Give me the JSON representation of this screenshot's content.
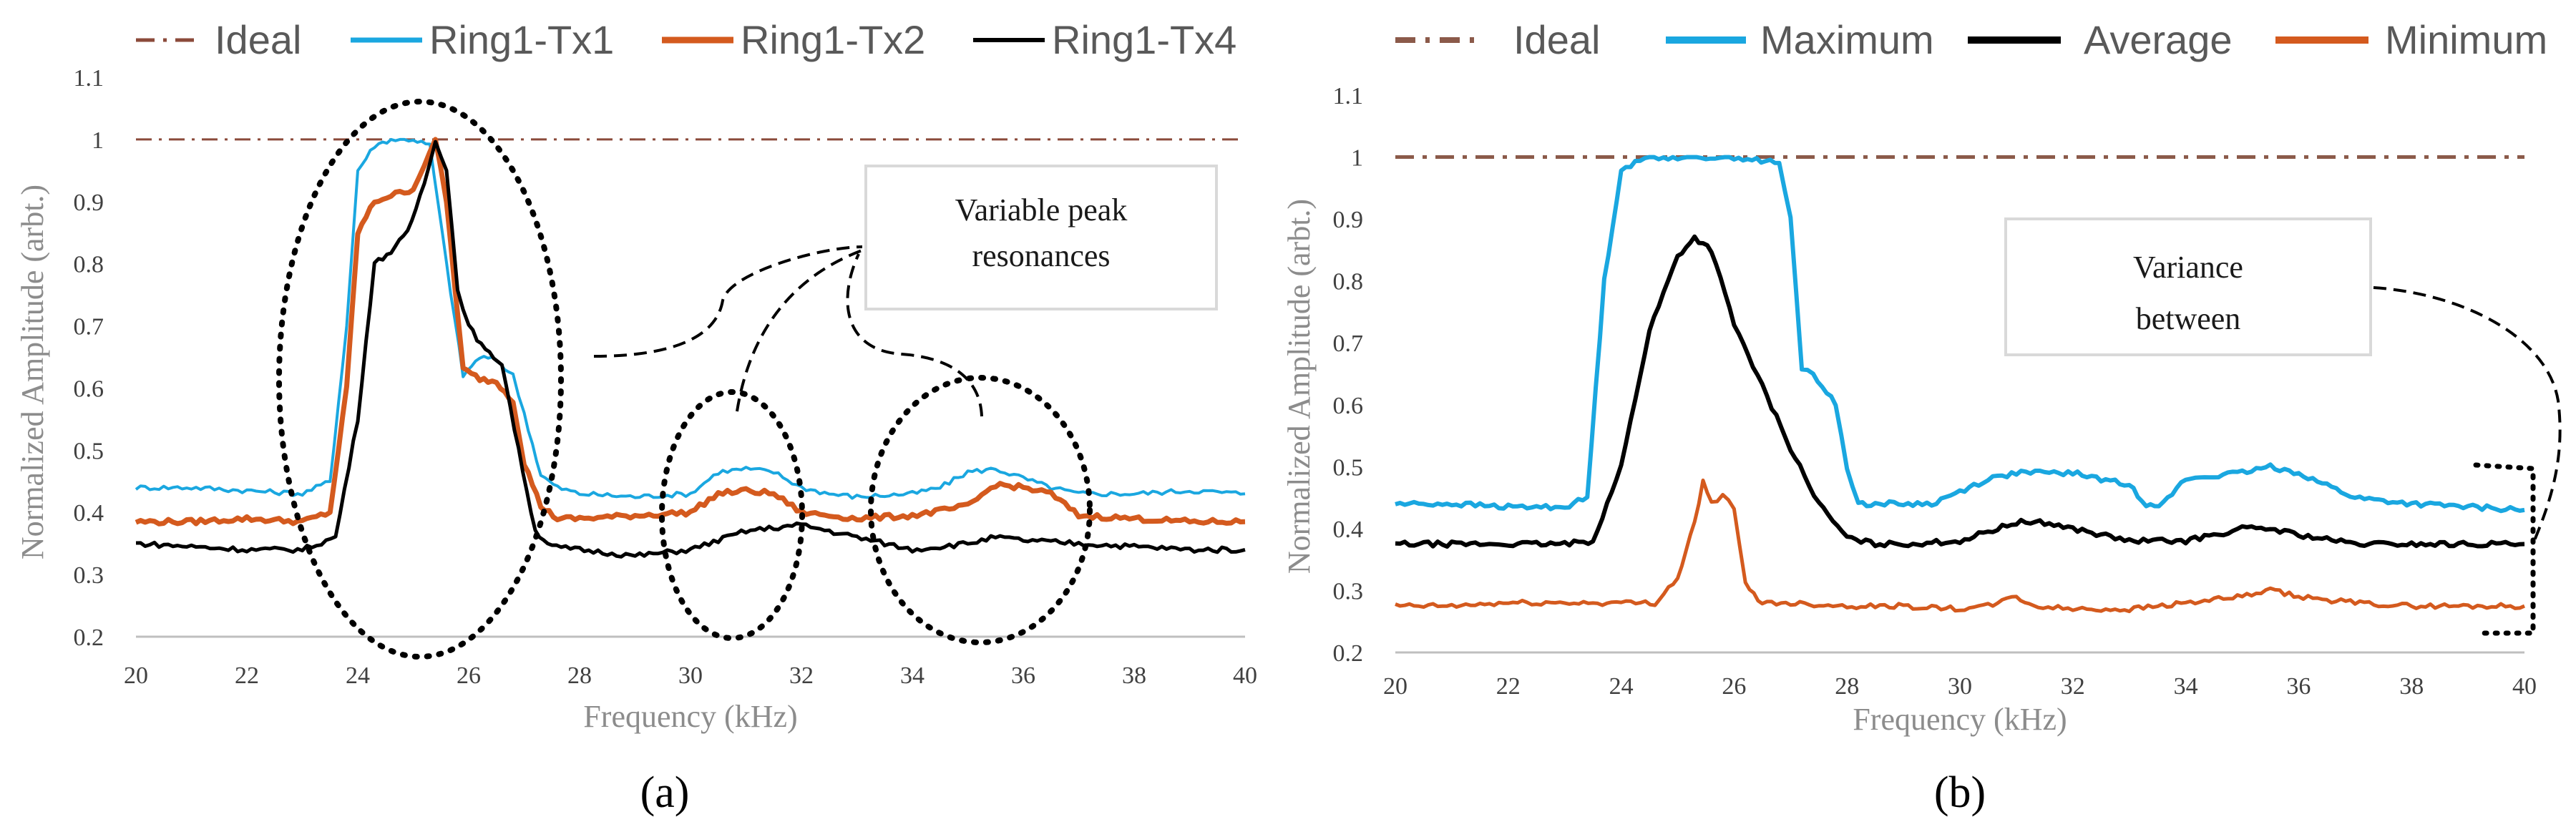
{
  "chart_data": [
    {
      "type": "line",
      "panel_label": "(a)",
      "xlabel": "Frequency (kHz)",
      "ylabel": "Normalized Amplitude (arbt.)",
      "xlim": [
        20,
        40
      ],
      "ylim": [
        0.2,
        1.1
      ],
      "xticks": [
        20,
        22,
        24,
        26,
        28,
        30,
        32,
        34,
        36,
        38,
        40
      ],
      "yticks": [
        0.2,
        0.3,
        0.4,
        0.5,
        0.6,
        0.7,
        0.8,
        0.9,
        1,
        1.1
      ],
      "ytick_labels": [
        "0.2",
        "0.3",
        "0.4",
        "0.5",
        "0.6",
        "0.7",
        "0.8",
        "0.9",
        "1",
        "1.1"
      ],
      "legend_position": "top",
      "series": [
        {
          "name": "Ideal",
          "color": "#8B4A3A",
          "style": "dashdot",
          "x": [
            20,
            40
          ],
          "y": [
            1,
            1
          ]
        },
        {
          "name": "Ring1-Tx1",
          "color": "#1AA7E0",
          "style": "solid",
          "x": [
            20,
            21,
            22,
            23,
            23.5,
            23.8,
            24,
            24.3,
            24.6,
            25.0,
            25.3,
            25.6,
            25.9,
            26.2,
            26.5,
            26.8,
            27.0,
            27.3,
            27.6,
            28,
            29,
            30,
            30.5,
            31,
            31.5,
            32,
            32.5,
            33,
            34,
            34.5,
            35,
            35.5,
            36,
            36.5,
            37,
            38,
            39,
            40
          ],
          "y": [
            0.44,
            0.44,
            0.435,
            0.43,
            0.45,
            0.7,
            0.95,
            0.99,
            1.0,
            1.0,
            0.99,
            0.8,
            0.62,
            0.65,
            0.645,
            0.62,
            0.56,
            0.46,
            0.44,
            0.43,
            0.425,
            0.43,
            0.465,
            0.47,
            0.465,
            0.44,
            0.43,
            0.425,
            0.43,
            0.44,
            0.465,
            0.47,
            0.455,
            0.44,
            0.43,
            0.43,
            0.435,
            0.43
          ]
        },
        {
          "name": "Ring1-Tx2",
          "color": "#D45A1E",
          "style": "solid",
          "x": [
            20,
            21,
            22,
            23,
            23.5,
            23.8,
            24.0,
            24.3,
            24.6,
            25.0,
            25.2,
            25.4,
            25.6,
            25.9,
            26.2,
            26.5,
            26.8,
            27.0,
            27.3,
            27.6,
            28,
            29,
            30,
            30.5,
            31,
            31.5,
            32,
            32.5,
            33,
            34,
            35,
            35.5,
            36,
            36.5,
            37,
            38,
            39,
            40
          ],
          "y": [
            0.385,
            0.385,
            0.39,
            0.385,
            0.4,
            0.6,
            0.85,
            0.9,
            0.91,
            0.92,
            0.96,
            1.0,
            0.9,
            0.63,
            0.615,
            0.61,
            0.58,
            0.48,
            0.41,
            0.39,
            0.39,
            0.395,
            0.4,
            0.43,
            0.435,
            0.43,
            0.4,
            0.395,
            0.39,
            0.395,
            0.41,
            0.445,
            0.44,
            0.43,
            0.395,
            0.39,
            0.385,
            0.385
          ]
        },
        {
          "name": "Ring1-Tx4",
          "color": "#000000",
          "style": "solid",
          "x": [
            20,
            21,
            22,
            23,
            23.6,
            24.0,
            24.3,
            24.6,
            24.9,
            25.2,
            25.4,
            25.6,
            25.8,
            26.0,
            26.3,
            26.6,
            26.9,
            27.2,
            27.5,
            28,
            29,
            30,
            30.5,
            31,
            31.5,
            32,
            33,
            34,
            35,
            35.5,
            36,
            37,
            38,
            39,
            40
          ],
          "y": [
            0.35,
            0.345,
            0.34,
            0.34,
            0.36,
            0.55,
            0.8,
            0.82,
            0.85,
            0.93,
            1.0,
            0.95,
            0.76,
            0.7,
            0.66,
            0.64,
            0.5,
            0.37,
            0.345,
            0.34,
            0.33,
            0.34,
            0.355,
            0.37,
            0.375,
            0.38,
            0.36,
            0.34,
            0.35,
            0.36,
            0.355,
            0.35,
            0.345,
            0.34,
            0.34
          ]
        }
      ],
      "annotations": [
        {
          "text_lines": [
            "Variable peak",
            "resonances"
          ]
        }
      ]
    },
    {
      "type": "line",
      "panel_label": "(b)",
      "xlabel": "Frequency (kHz)",
      "ylabel": "Normalized Amplitude (arbt.)",
      "xlim": [
        20,
        40
      ],
      "ylim": [
        0.2,
        1.1
      ],
      "xticks": [
        20,
        22,
        24,
        26,
        28,
        30,
        32,
        34,
        36,
        38,
        40
      ],
      "yticks": [
        0.2,
        0.3,
        0.4,
        0.5,
        0.6,
        0.7,
        0.8,
        0.9,
        1,
        1.1
      ],
      "ytick_labels": [
        "0.2",
        "0.3",
        "0.4",
        "0.5",
        "0.6",
        "0.7",
        "0.8",
        "0.9",
        "1",
        "1.1"
      ],
      "legend_position": "top",
      "series": [
        {
          "name": "Ideal",
          "color": "#8B5A4A",
          "style": "dashdot",
          "x": [
            20,
            40
          ],
          "y": [
            1,
            1
          ]
        },
        {
          "name": "Maximum",
          "color": "#1AA7E0",
          "style": "solid",
          "x": [
            20,
            21,
            22,
            23,
            23.4,
            23.7,
            24.0,
            24.5,
            25,
            26,
            26.8,
            27.0,
            27.2,
            27.4,
            27.8,
            28.0,
            28.2,
            28.5,
            29,
            29.5,
            30,
            30.5,
            31,
            32,
            33,
            33.3,
            33.6,
            34,
            35,
            35.5,
            36,
            37,
            38,
            39,
            40
          ],
          "y": [
            0.44,
            0.44,
            0.435,
            0.435,
            0.45,
            0.8,
            0.98,
            1.0,
            1.0,
            1.0,
            0.99,
            0.9,
            0.66,
            0.65,
            0.6,
            0.5,
            0.44,
            0.44,
            0.44,
            0.44,
            0.46,
            0.48,
            0.49,
            0.49,
            0.47,
            0.44,
            0.44,
            0.48,
            0.49,
            0.5,
            0.49,
            0.45,
            0.44,
            0.435,
            0.43
          ]
        },
        {
          "name": "Average",
          "color": "#000000",
          "style": "solid",
          "x": [
            20,
            21,
            22,
            23,
            23.5,
            24.0,
            24.5,
            25.0,
            25.3,
            25.6,
            26.0,
            26.5,
            27.0,
            27.5,
            28.0,
            28.5,
            29,
            30,
            30.5,
            31,
            31.5,
            32,
            33,
            34,
            35,
            35.5,
            36,
            37,
            38,
            39,
            40
          ],
          "y": [
            0.375,
            0.375,
            0.375,
            0.375,
            0.38,
            0.5,
            0.72,
            0.84,
            0.87,
            0.85,
            0.73,
            0.63,
            0.53,
            0.44,
            0.385,
            0.375,
            0.375,
            0.38,
            0.395,
            0.41,
            0.41,
            0.4,
            0.38,
            0.38,
            0.4,
            0.4,
            0.39,
            0.375,
            0.375,
            0.375,
            0.375
          ]
        },
        {
          "name": "Minimum",
          "color": "#D45A1E",
          "style": "solid",
          "x": [
            20,
            21,
            22,
            23,
            24,
            24.6,
            25.0,
            25.3,
            25.45,
            25.6,
            25.8,
            26.0,
            26.2,
            26.5,
            27,
            28,
            29,
            30,
            30.5,
            31,
            31.3,
            32,
            33,
            34,
            35,
            35.5,
            36,
            37,
            38,
            39,
            40
          ],
          "y": [
            0.275,
            0.275,
            0.28,
            0.28,
            0.28,
            0.28,
            0.32,
            0.41,
            0.475,
            0.44,
            0.455,
            0.43,
            0.31,
            0.28,
            0.28,
            0.275,
            0.275,
            0.27,
            0.275,
            0.29,
            0.275,
            0.27,
            0.27,
            0.28,
            0.29,
            0.3,
            0.29,
            0.28,
            0.275,
            0.275,
            0.275
          ]
        }
      ],
      "annotations": [
        {
          "text_lines": [
            "Variance",
            "between"
          ]
        }
      ]
    }
  ]
}
